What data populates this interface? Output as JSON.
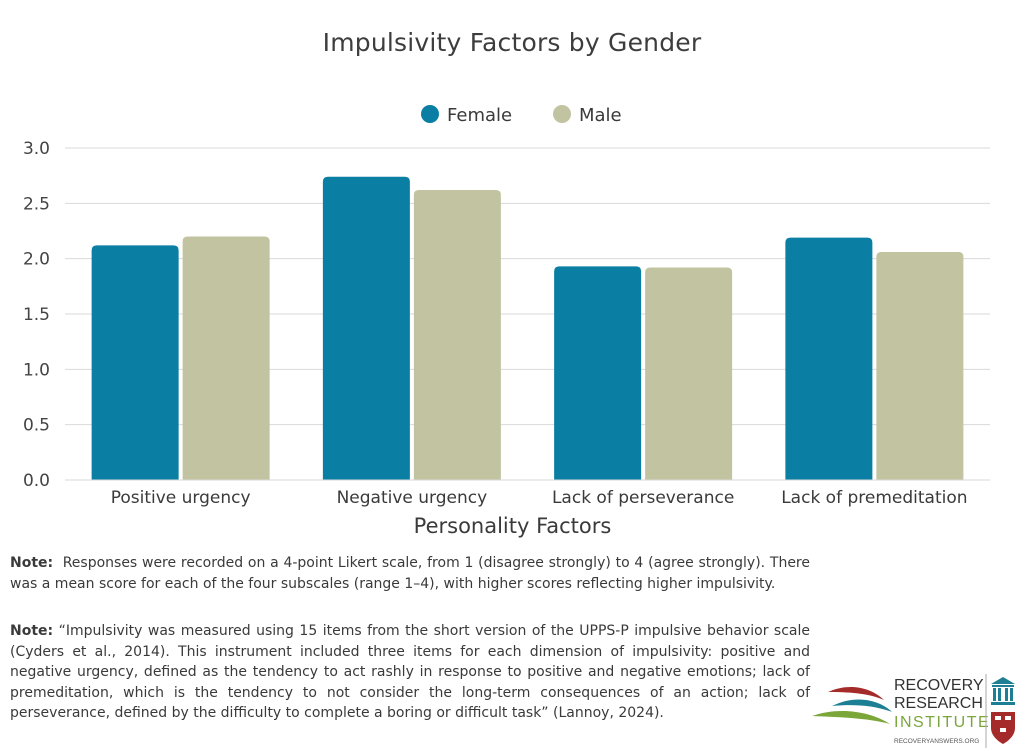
{
  "chart_data": {
    "type": "bar",
    "title": "Impulsivity Factors by Gender",
    "xlabel": "Personality Factors",
    "ylabel": "",
    "categories": [
      "Positive urgency",
      "Negative urgency",
      "Lack of perseverance",
      "Lack of premeditation"
    ],
    "series": [
      {
        "name": "Female",
        "color": "#0a7ea3",
        "values": [
          2.12,
          2.74,
          1.93,
          2.19
        ]
      },
      {
        "name": "Male",
        "color": "#c2c3a0",
        "values": [
          2.2,
          2.62,
          1.92,
          2.06
        ]
      }
    ],
    "ylim": [
      0,
      3.0
    ],
    "yticks": [
      "0.0",
      "0.5",
      "1.0",
      "1.5",
      "2.0",
      "2.5",
      "3.0"
    ],
    "grid": true,
    "legend_position": "top-center"
  },
  "notes": [
    {
      "label": "Note:",
      "text": "Responses were recorded on a 4-point Likert scale, from 1 (disagree strongly) to 4 (agree strongly). There was a mean score for each of the four subscales (range 1–4), with higher scores reflecting higher impulsivity."
    },
    {
      "label": "Note:",
      "text": "“Impulsivity was measured using 15 items from the short version of the UPPS-P impulsive behavior scale (Cyders et al., 2014). This instrument included three items for each dimension of impulsivity: positive and negative urgency, defined as the tendency to act rashly in response to positive and negative emotions; lack of premeditation, which is the tendency to not consider the long-term consequences of an action; lack of perseverance, defined by the difficulty to complete a boring or difficult task” (Lannoy, 2024)."
    }
  ],
  "logo": {
    "line1": "RECOVERY",
    "line2": "RESEARCH",
    "line3": "INSTITUTE",
    "url": "RECOVERYANSWERS.ORG",
    "green": "#7aa63a",
    "teal": "#1c7f93",
    "red": "#a52a2a"
  }
}
